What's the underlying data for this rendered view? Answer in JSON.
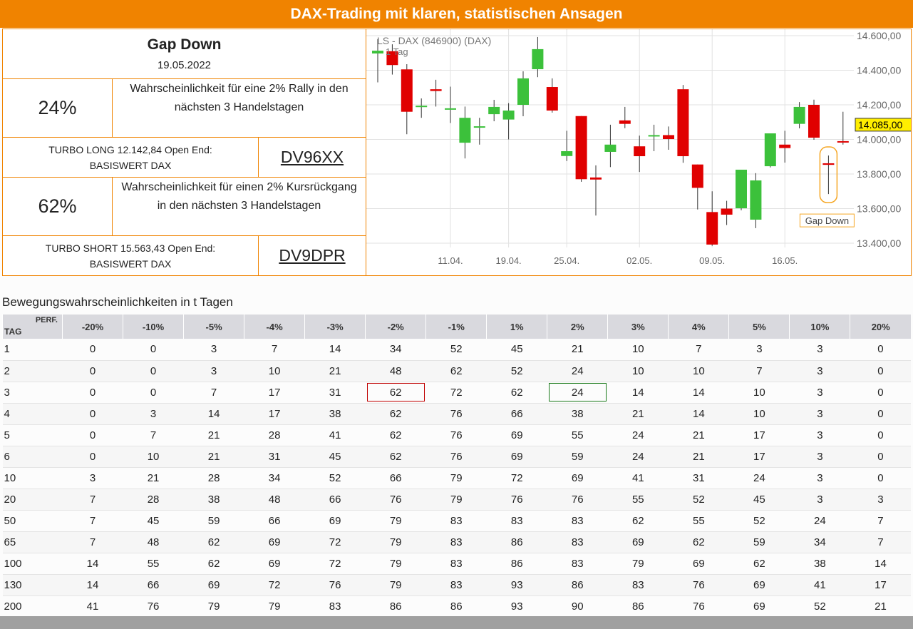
{
  "header": {
    "title": "DAX-Trading mit klaren, statistischen Ansagen"
  },
  "signal": {
    "title": "Gap Down",
    "date": "19.05.2022"
  },
  "long": {
    "probability": "24%",
    "text": "Wahrscheinlichkeit für eine 2% Rally in den nächsten 3 Handelstagen",
    "product_line1": "TURBO LONG 12.142,84 Open End:",
    "product_line2": "BASISWERT DAX",
    "code": "DV96XX"
  },
  "short": {
    "probability": "62%",
    "text": "Wahrscheinlichkeit für einen 2% Kursrückgang in den nächsten 3 Handelstagen",
    "product_line1": "TURBO SHORT 15.563,43 Open End:",
    "product_line2": "BASISWERT DAX",
    "code": "DV9DPR"
  },
  "chart_data": {
    "type": "candlestick",
    "title": "LS - DAX (846900) (DAX)",
    "subtitle": "1 Tag",
    "up_color": "#3cc13b",
    "down_color": "#e00000",
    "grid": true,
    "categories": [
      null,
      null,
      null,
      null,
      null,
      "11.04.",
      null,
      null,
      null,
      "19.04.",
      null,
      null,
      null,
      "25.04.",
      null,
      null,
      null,
      null,
      "02.05.",
      null,
      null,
      null,
      null,
      "09.05.",
      null,
      null,
      null,
      null,
      "16.05.",
      null,
      null,
      null,
      null
    ],
    "candles": [
      {
        "open": 14497,
        "high": 14580,
        "low": 14330,
        "close": 14513
      },
      {
        "open": 14510,
        "high": 14550,
        "low": 14375,
        "close": 14430
      },
      {
        "open": 14405,
        "high": 14435,
        "low": 14030,
        "close": 14160
      },
      {
        "open": 14190,
        "high": 14237,
        "low": 14125,
        "close": 14195
      },
      {
        "open": 14290,
        "high": 14345,
        "low": 14190,
        "close": 14280
      },
      {
        "open": 14176,
        "high": 14305,
        "low": 14095,
        "close": 14180
      },
      {
        "open": 13981,
        "high": 14190,
        "low": 13890,
        "close": 14125
      },
      {
        "open": 14072,
        "high": 14125,
        "low": 13970,
        "close": 14076
      },
      {
        "open": 14146,
        "high": 14229,
        "low": 14105,
        "close": 14188
      },
      {
        "open": 14115,
        "high": 14210,
        "low": 14000,
        "close": 14167
      },
      {
        "open": 14200,
        "high": 14394,
        "low": 14134,
        "close": 14353
      },
      {
        "open": 14406,
        "high": 14592,
        "low": 14360,
        "close": 14522
      },
      {
        "open": 14303,
        "high": 14353,
        "low": 14155,
        "close": 14167
      },
      {
        "open": 13904,
        "high": 14050,
        "low": 13875,
        "close": 13932
      },
      {
        "open": 14135,
        "high": 14135,
        "low": 13755,
        "close": 13770
      },
      {
        "open": 13780,
        "high": 13850,
        "low": 13560,
        "close": 13768
      },
      {
        "open": 13928,
        "high": 14085,
        "low": 13840,
        "close": 13970
      },
      {
        "open": 14110,
        "high": 14188,
        "low": 14065,
        "close": 14090
      },
      {
        "open": 13960,
        "high": 14022,
        "low": 13812,
        "close": 13903
      },
      {
        "open": 14021,
        "high": 14085,
        "low": 13932,
        "close": 14025
      },
      {
        "open": 14025,
        "high": 14075,
        "low": 13940,
        "close": 14002
      },
      {
        "open": 14290,
        "high": 14315,
        "low": 13865,
        "close": 13903
      },
      {
        "open": 13855,
        "high": 13855,
        "low": 13595,
        "close": 13720
      },
      {
        "open": 13580,
        "high": 13700,
        "low": 13385,
        "close": 13392
      },
      {
        "open": 13600,
        "high": 13645,
        "low": 13505,
        "close": 13565
      },
      {
        "open": 13602,
        "high": 13825,
        "low": 13590,
        "close": 13825
      },
      {
        "open": 13536,
        "high": 13805,
        "low": 13487,
        "close": 13763
      },
      {
        "open": 13845,
        "high": 14035,
        "low": 13838,
        "close": 14035
      },
      {
        "open": 13970,
        "high": 14050,
        "low": 13866,
        "close": 13950
      },
      {
        "open": 14090,
        "high": 14216,
        "low": 14064,
        "close": 14188
      },
      {
        "open": 14200,
        "high": 14230,
        "low": 13998,
        "close": 14010
      },
      {
        "open": 13862,
        "high": 13907,
        "low": 13684,
        "close": 13853
      },
      {
        "open": 13990,
        "high": 14160,
        "low": 13970,
        "close": 13982
      }
    ],
    "ylim": [
      13400,
      14600
    ],
    "yticks": [
      {
        "value": 13400,
        "label": "13.400,00"
      },
      {
        "value": 13600,
        "label": "13.600,00"
      },
      {
        "value": 13800,
        "label": "13.800,00"
      },
      {
        "value": 14000,
        "label": "14.000,00"
      },
      {
        "value": 14200,
        "label": "14.200,00"
      },
      {
        "value": 14400,
        "label": "14.400,00"
      },
      {
        "value": 14600,
        "label": "14.600,00"
      }
    ],
    "last_price": {
      "value": 14085,
      "label": "14.085,00"
    },
    "annotation": {
      "text": "Gap Down",
      "index": 31
    }
  },
  "table": {
    "title": "Bewegungswahrscheinlichkeiten in t Tagen",
    "corner_row": "TAG",
    "corner_col": "PERF.",
    "columns": [
      "-20%",
      "-10%",
      "-5%",
      "-4%",
      "-3%",
      "-2%",
      "-1%",
      "1%",
      "2%",
      "3%",
      "4%",
      "5%",
      "10%",
      "20%"
    ],
    "rows": [
      {
        "day": "1",
        "values": [
          0,
          0,
          3,
          7,
          14,
          34,
          52,
          45,
          21,
          10,
          7,
          3,
          3,
          0
        ]
      },
      {
        "day": "2",
        "values": [
          0,
          0,
          3,
          10,
          21,
          48,
          62,
          52,
          24,
          10,
          10,
          7,
          3,
          0
        ]
      },
      {
        "day": "3",
        "values": [
          0,
          0,
          7,
          17,
          31,
          62,
          72,
          62,
          24,
          14,
          14,
          10,
          3,
          0
        ]
      },
      {
        "day": "4",
        "values": [
          0,
          3,
          14,
          17,
          38,
          62,
          76,
          66,
          38,
          21,
          14,
          10,
          3,
          0
        ]
      },
      {
        "day": "5",
        "values": [
          0,
          7,
          21,
          28,
          41,
          62,
          76,
          69,
          55,
          24,
          21,
          17,
          3,
          0
        ]
      },
      {
        "day": "6",
        "values": [
          0,
          10,
          21,
          31,
          45,
          62,
          76,
          69,
          59,
          24,
          21,
          17,
          3,
          0
        ]
      },
      {
        "day": "10",
        "values": [
          3,
          21,
          28,
          34,
          52,
          66,
          79,
          72,
          69,
          41,
          31,
          24,
          3,
          0
        ]
      },
      {
        "day": "20",
        "values": [
          7,
          28,
          38,
          48,
          66,
          76,
          79,
          76,
          76,
          55,
          52,
          45,
          3,
          3
        ]
      },
      {
        "day": "50",
        "values": [
          7,
          45,
          59,
          66,
          69,
          79,
          83,
          83,
          83,
          62,
          55,
          52,
          24,
          7
        ]
      },
      {
        "day": "65",
        "values": [
          7,
          48,
          62,
          69,
          72,
          79,
          83,
          86,
          83,
          69,
          62,
          59,
          34,
          7
        ]
      },
      {
        "day": "100",
        "values": [
          14,
          55,
          62,
          69,
          72,
          79,
          83,
          86,
          83,
          79,
          69,
          62,
          38,
          14
        ]
      },
      {
        "day": "130",
        "values": [
          14,
          66,
          69,
          72,
          76,
          79,
          83,
          93,
          86,
          83,
          76,
          69,
          41,
          17
        ]
      },
      {
        "day": "200",
        "values": [
          41,
          76,
          79,
          79,
          83,
          86,
          86,
          93,
          90,
          86,
          76,
          69,
          52,
          21
        ]
      }
    ],
    "highlights": [
      {
        "row": 2,
        "col": 5,
        "color": "#c00000"
      },
      {
        "row": 2,
        "col": 8,
        "color": "#1a7a1a"
      }
    ]
  }
}
